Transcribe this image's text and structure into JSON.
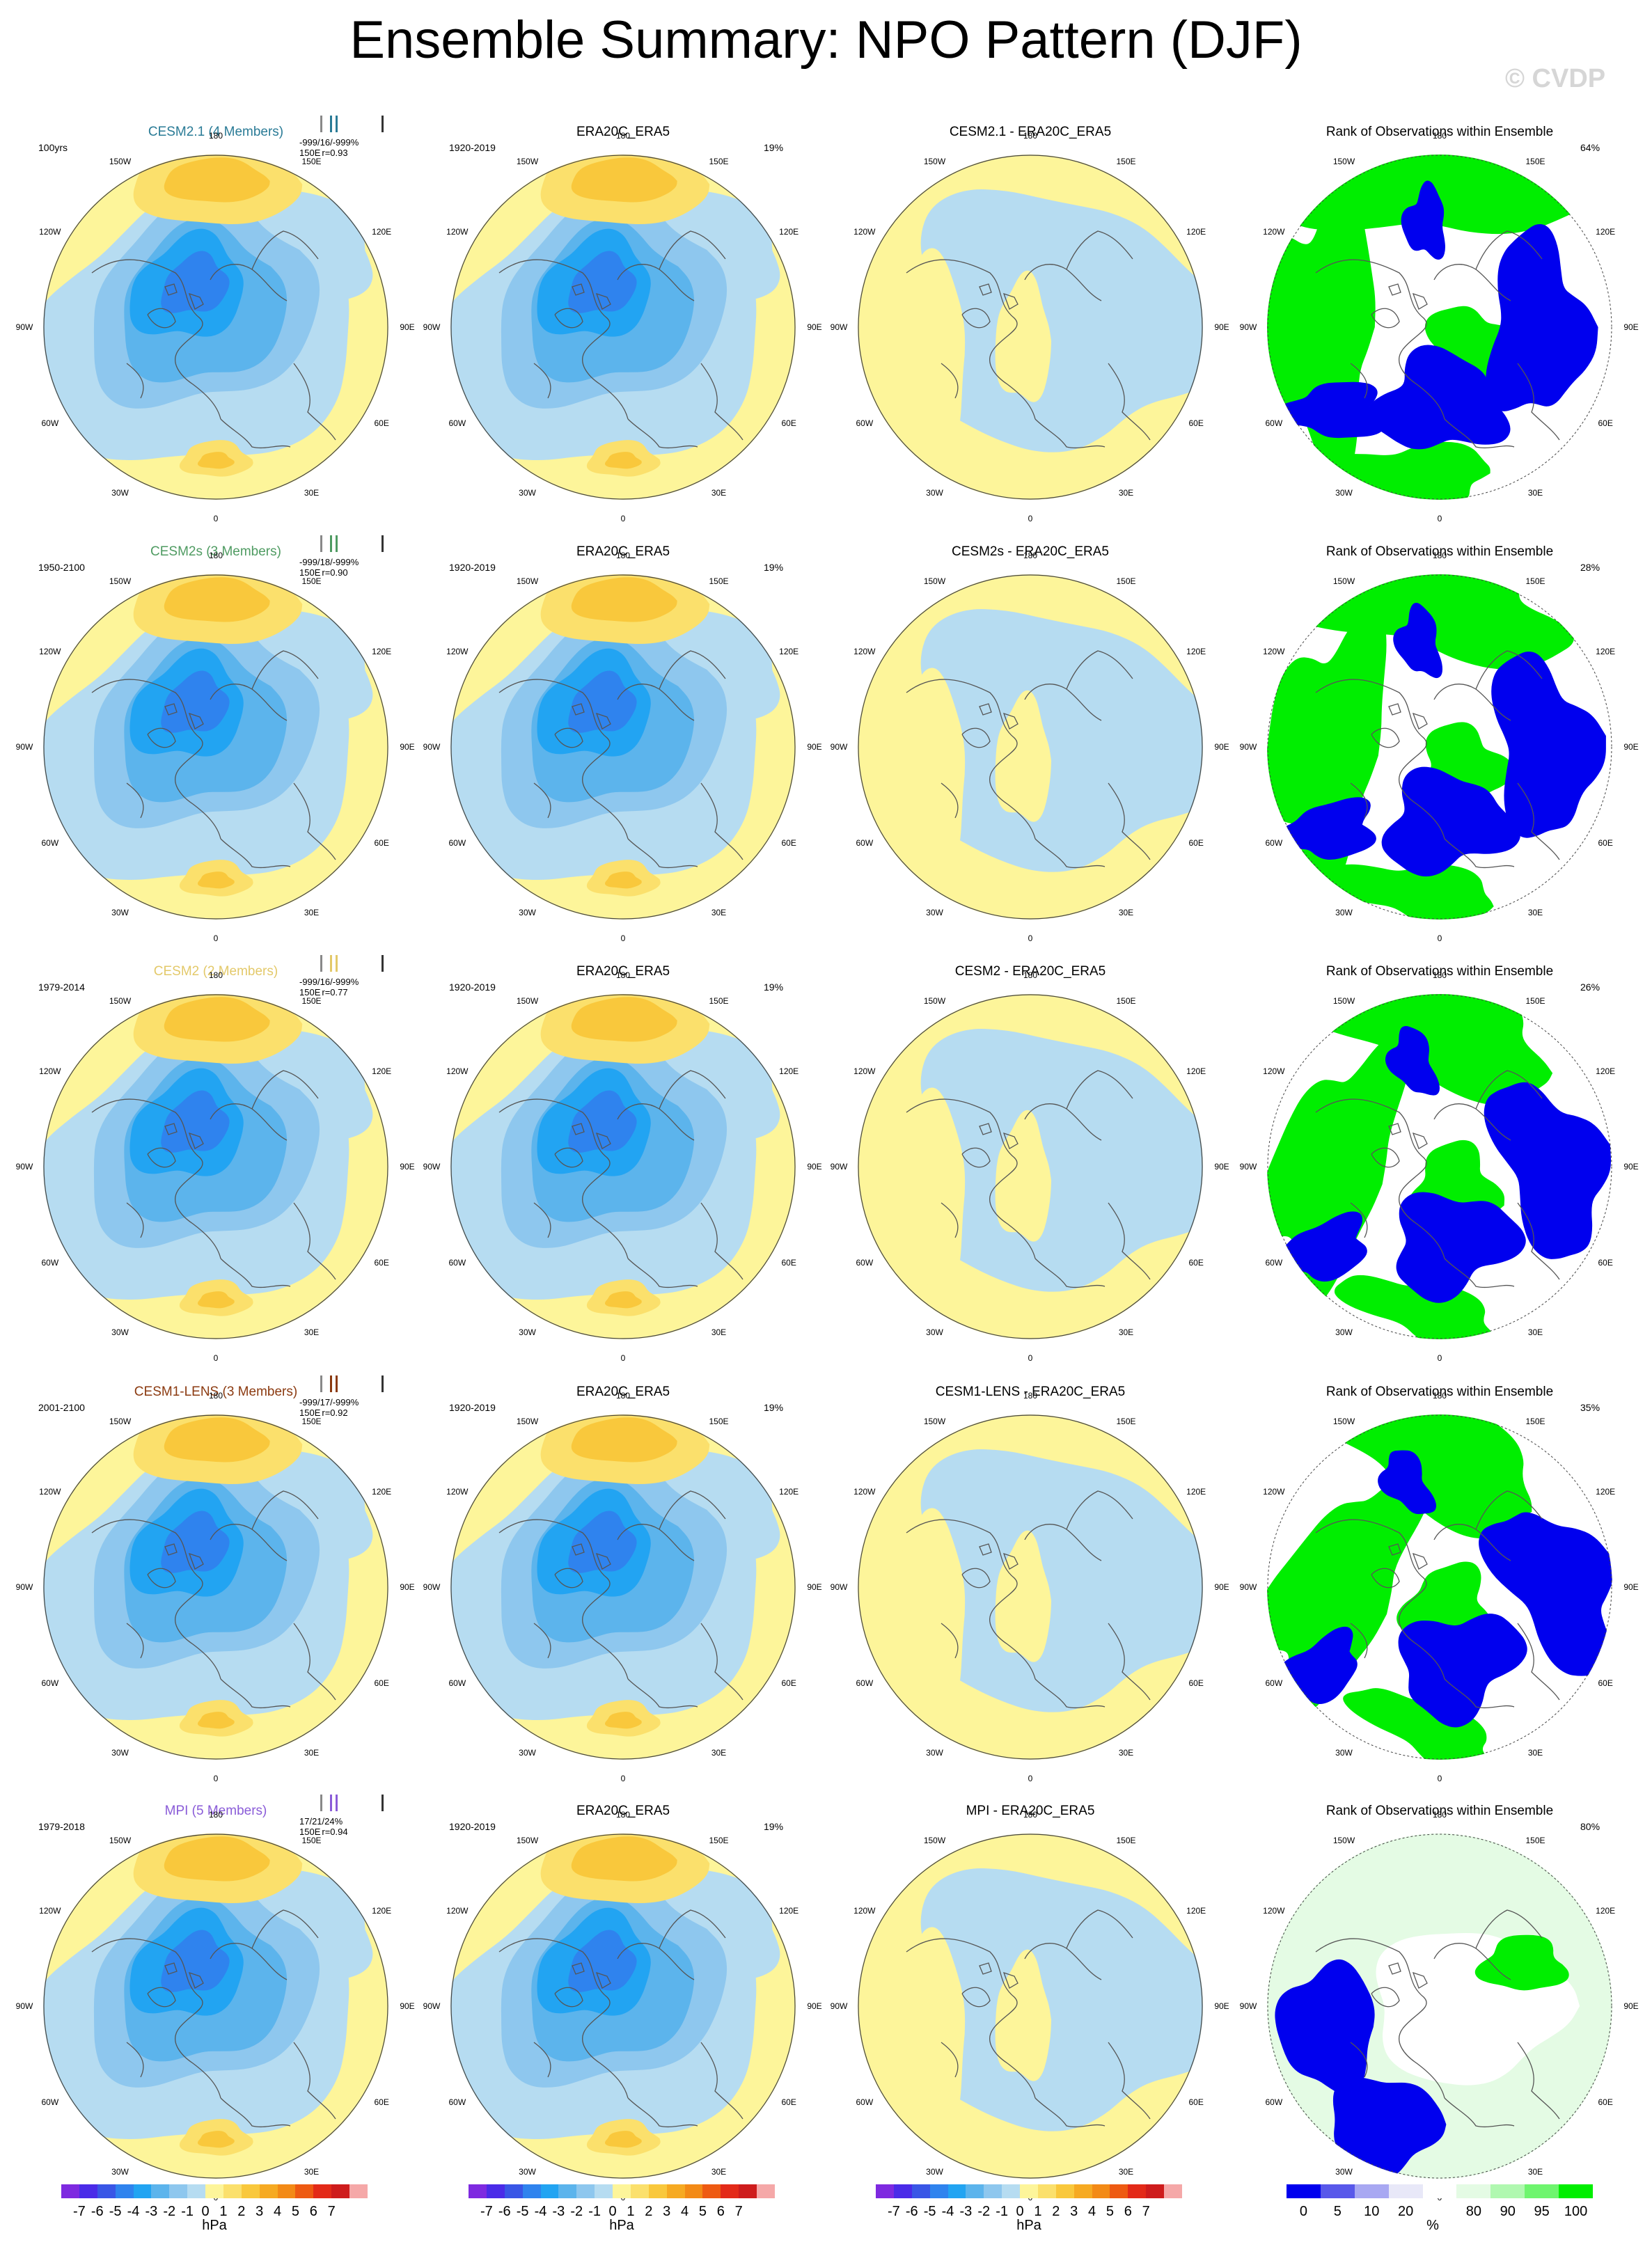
{
  "title": "Ensemble Summary: NPO Pattern (DJF)",
  "watermark": "© CVDP",
  "colors": {
    "blue_7": "#7e2ae0",
    "blue_6": "#4a2be8",
    "blue_5": "#3956e6",
    "blue_4": "#2f83ee",
    "blue_3": "#22a4f2",
    "blue_2": "#5cb4ec",
    "blue_1": "#8ec7ee",
    "neutral_neg": "#b6dcf1",
    "neutral_pos": "#fdf59a",
    "red_1": "#fbe06c",
    "red_2": "#f9c83c",
    "red_3": "#f6aa22",
    "red_4": "#f38a16",
    "red_5": "#ee5a12",
    "red_6": "#e32a18",
    "red_7": "#ce1c1c",
    "red_8": "#f5a8a8",
    "rank_0": "#0000ee",
    "rank_5": "#5858ea",
    "rank_10": "#a8a8f2",
    "rank_20": "#e8e8f8",
    "rank_mid": "#ffffff",
    "rank_80": "#e4fbe4",
    "rank_90": "#b0f8b0",
    "rank_95": "#6ef56e",
    "rank_100": "#00ee00",
    "map_outline": "#555555"
  },
  "lon_labels": {
    "n": "180",
    "nne": "150E",
    "ene": "120E",
    "e": "90E",
    "ese": "60E",
    "sse": "30E",
    "s": "0",
    "ssw": "30W",
    "wsw": "60W",
    "w": "90W",
    "wnw": "120W",
    "nnw": "150W"
  },
  "rows": [
    {
      "model_title": "CESM2.1 (4 Members)",
      "model_color": "#2a7b96",
      "model_period": "100yrs",
      "stats_1": "-999/16/-999%",
      "stats_2": "150E",
      "stats_3": "r=0.93",
      "obs_title": "ERA20C_ERA5",
      "obs_period": "1920-2019",
      "obs_pct": "19%",
      "diff_title": "CESM2.1 - ERA20C_ERA5",
      "rank_title": "Rank of Observations within Ensemble",
      "rank_pct": "64%"
    },
    {
      "model_title": "CESM2s (3 Members)",
      "model_color": "#4f9b62",
      "model_period": "1950-2100",
      "stats_1": "-999/18/-999%",
      "stats_2": "150E",
      "stats_3": "r=0.90",
      "obs_title": "ERA20C_ERA5",
      "obs_period": "1920-2019",
      "obs_pct": "19%",
      "diff_title": "CESM2s - ERA20C_ERA5",
      "rank_title": "Rank of Observations within Ensemble",
      "rank_pct": "28%"
    },
    {
      "model_title": "CESM2 (2 Members)",
      "model_color": "#e3c96a",
      "model_period": "1979-2014",
      "stats_1": "-999/16/-999%",
      "stats_2": "150E",
      "stats_3": "r=0.77",
      "obs_title": "ERA20C_ERA5",
      "obs_period": "1920-2019",
      "obs_pct": "19%",
      "diff_title": "CESM2 - ERA20C_ERA5",
      "rank_title": "Rank of Observations within Ensemble",
      "rank_pct": "26%"
    },
    {
      "model_title": "CESM1-LENS (3 Members)",
      "model_color": "#8b3a10",
      "model_period": "2001-2100",
      "stats_1": "-999/17/-999%",
      "stats_2": "150E",
      "stats_3": "r=0.92",
      "obs_title": "ERA20C_ERA5",
      "obs_period": "1920-2019",
      "obs_pct": "19%",
      "diff_title": "CESM1-LENS - ERA20C_ERA5",
      "rank_title": "Rank of Observations within Ensemble",
      "rank_pct": "35%"
    },
    {
      "model_title": "MPI (5 Members)",
      "model_color": "#8a5cd8",
      "model_period": "1979-2018",
      "stats_1": "17/21/24%",
      "stats_2": "150E",
      "stats_3": "r=0.94",
      "obs_title": "ERA20C_ERA5",
      "obs_period": "1920-2019",
      "obs_pct": "19%",
      "diff_title": "MPI - ERA20C_ERA5",
      "rank_title": "Rank of Observations within Ensemble",
      "rank_pct": "80%"
    }
  ],
  "colorbar": {
    "labels": [
      "-7",
      "-6",
      "-5",
      "-4",
      "-3",
      "-2",
      "-1",
      "0",
      "1",
      "2",
      "3",
      "4",
      "5",
      "6",
      "7"
    ],
    "unit": "hPa"
  },
  "rank_colorbar": {
    "labels": [
      "0",
      "5",
      "10",
      "20",
      "80",
      "90",
      "95",
      "100"
    ],
    "unit": "%"
  }
}
